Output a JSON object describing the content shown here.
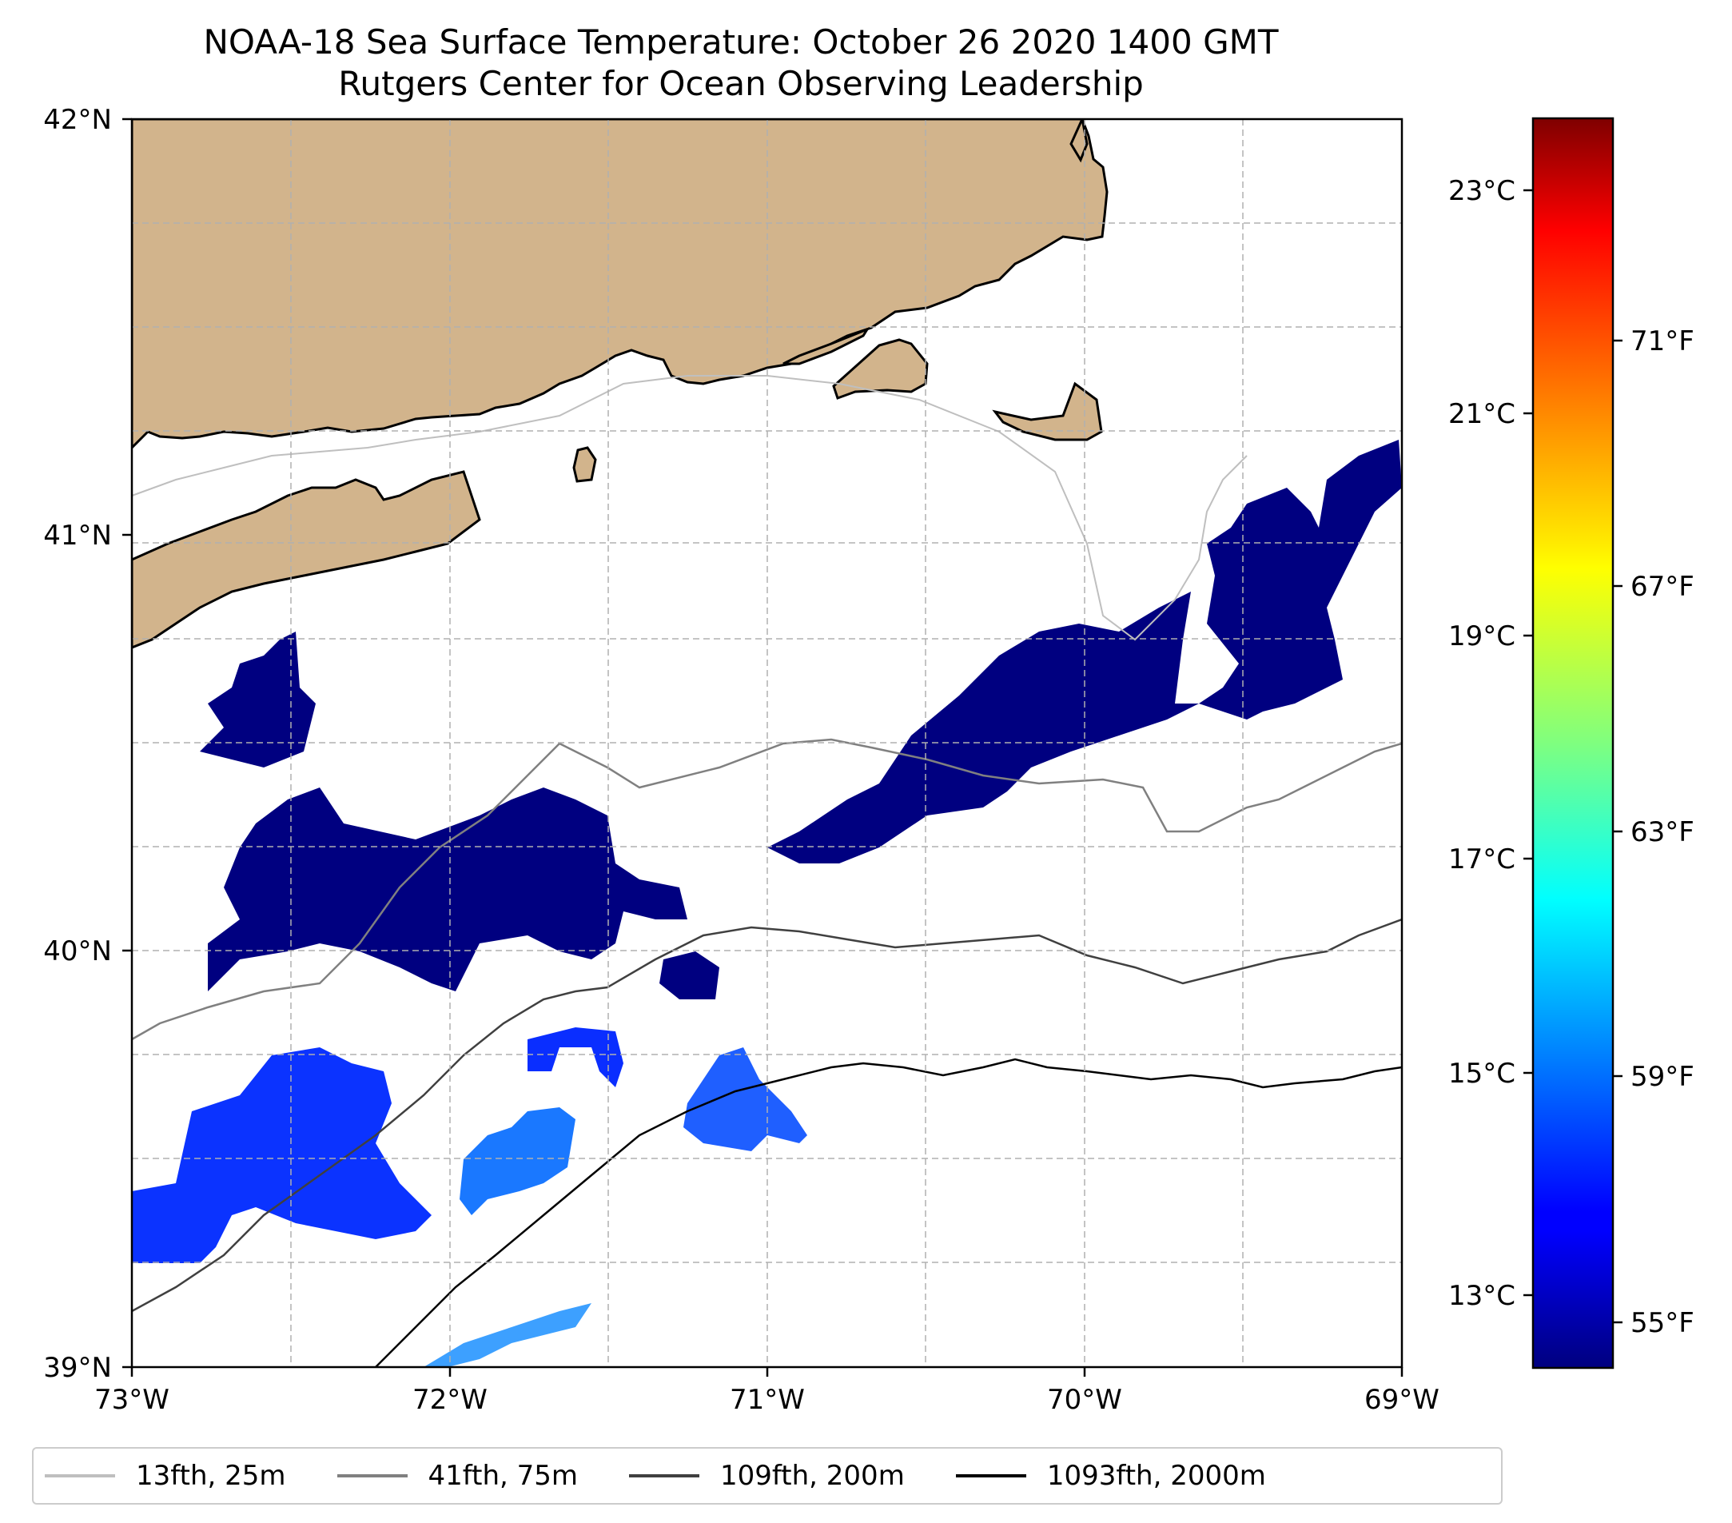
{
  "title": "NOAA-18 Sea Surface Temperature: October 26 2020 1400 GMT",
  "subtitle": "Rutgers Center for Ocean Observing Leadership",
  "map": {
    "lon_range": [
      -73,
      -69
    ],
    "lat_range": [
      39,
      42
    ],
    "lon_ticks": [
      {
        "value": -73,
        "label": "73°W"
      },
      {
        "value": -72,
        "label": "72°W"
      },
      {
        "value": -71,
        "label": "71°W"
      },
      {
        "value": -70,
        "label": "70°W"
      },
      {
        "value": -69,
        "label": "69°W"
      }
    ],
    "lat_ticks": [
      {
        "value": 42,
        "label": "42°N"
      },
      {
        "value": 41,
        "label": "41°N"
      },
      {
        "value": 40,
        "label": "40°N"
      },
      {
        "value": 39,
        "label": "39°N"
      }
    ],
    "gridlines": true,
    "land_color": "#d2b48c",
    "coastline_color": "#000000"
  },
  "colorbar": {
    "colormap": "jet",
    "range_c": [
      12.5,
      23.7
    ],
    "celsius_ticks": [
      {
        "value": 23,
        "label": "23°C"
      },
      {
        "value": 21,
        "label": "21°C"
      },
      {
        "value": 19,
        "label": "19°C"
      },
      {
        "value": 17,
        "label": "17°C"
      },
      {
        "value": 15,
        "label": "15°C"
      },
      {
        "value": 13,
        "label": "13°C"
      }
    ],
    "fahrenheit_ticks": [
      {
        "value": 71,
        "label": "71°F"
      },
      {
        "value": 67,
        "label": "67°F"
      },
      {
        "value": 63,
        "label": "63°F"
      },
      {
        "value": 59,
        "label": "59°F"
      },
      {
        "value": 55,
        "label": "55°F"
      }
    ]
  },
  "legend": {
    "placement": "bottom",
    "items": [
      {
        "label": "13fth, 25m",
        "color": "#bfbfbf"
      },
      {
        "label": "41fth, 75m",
        "color": "#808080"
      },
      {
        "label": "109fth, 200m",
        "color": "#404040"
      },
      {
        "label": "1093fth, 2000m",
        "color": "#000000"
      }
    ]
  }
}
